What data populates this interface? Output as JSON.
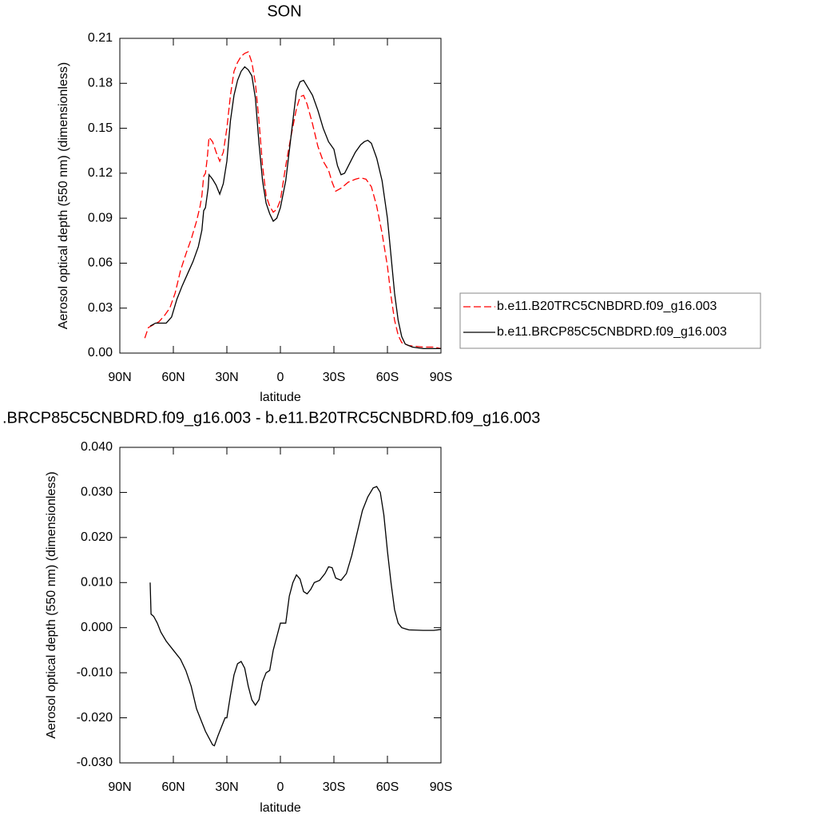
{
  "chart_data": [
    {
      "type": "line",
      "title": "SON",
      "xlabel": "latitude",
      "ylabel": "Aerosol optical depth (550 nm) (dimensionless)",
      "xlim": [
        90,
        -90
      ],
      "xticks": [
        {
          "value": 90,
          "label": "90N"
        },
        {
          "value": 60,
          "label": "60N"
        },
        {
          "value": 30,
          "label": "30N"
        },
        0,
        {
          "value": -30,
          "label": "30S"
        },
        {
          "value": -60,
          "label": "60S"
        },
        {
          "value": -90,
          "label": "90S"
        }
      ],
      "ylim": [
        0,
        0.21
      ],
      "yticks": [
        {
          "value": 0,
          "label": "0.00"
        },
        0.03,
        0.06,
        0.09,
        0.12,
        0.15,
        0.18,
        0.21
      ],
      "legend": "right",
      "series": [
        {
          "name": "b.e11.B20TRC5CNBDRD.f09_g16.003",
          "color": "#ff0000",
          "line_style": "dashed",
          "x": [
            76,
            74,
            71,
            68,
            65,
            62,
            59,
            56,
            53,
            50,
            47,
            45,
            44,
            43,
            42,
            41,
            40,
            38,
            36,
            34,
            32,
            30,
            28,
            26,
            24,
            22,
            20,
            18,
            16,
            14,
            12,
            10,
            8,
            6,
            4,
            2,
            0,
            -3,
            -6,
            -9,
            -11,
            -13,
            -15,
            -18,
            -21,
            -24,
            -27,
            -29,
            -31,
            -34,
            -38,
            -42,
            -45,
            -48,
            -51,
            -54,
            -57,
            -60,
            -62,
            -64,
            -66,
            -68,
            -72,
            -80,
            -86,
            -90
          ],
          "values": [
            0.01,
            0.017,
            0.019,
            0.021,
            0.025,
            0.03,
            0.04,
            0.055,
            0.066,
            0.076,
            0.088,
            0.098,
            0.105,
            0.118,
            0.12,
            0.13,
            0.144,
            0.141,
            0.134,
            0.128,
            0.134,
            0.15,
            0.172,
            0.188,
            0.194,
            0.198,
            0.2,
            0.201,
            0.194,
            0.18,
            0.155,
            0.125,
            0.105,
            0.098,
            0.094,
            0.096,
            0.102,
            0.125,
            0.145,
            0.163,
            0.171,
            0.172,
            0.166,
            0.153,
            0.138,
            0.128,
            0.122,
            0.114,
            0.108,
            0.11,
            0.114,
            0.116,
            0.117,
            0.116,
            0.111,
            0.098,
            0.08,
            0.058,
            0.038,
            0.022,
            0.012,
            0.007,
            0.005,
            0.004,
            0.004,
            0.003
          ]
        },
        {
          "name": "b.e11.BRCP85C5CNBDRD.f09_g16.003",
          "color": "#000000",
          "line_style": "solid",
          "x": [
            73,
            70,
            67,
            64,
            61,
            58,
            55,
            52,
            49,
            46,
            44,
            43,
            42,
            40.5,
            40,
            38,
            36,
            34,
            32,
            30,
            28,
            26,
            24,
            22,
            20,
            18,
            16,
            14,
            12,
            10,
            8,
            6,
            4,
            2,
            0,
            -3,
            -6,
            -9,
            -11,
            -13,
            -15,
            -18,
            -21,
            -24,
            -27,
            -30,
            -32,
            -34,
            -36,
            -39,
            -42,
            -45,
            -47,
            -49,
            -51,
            -54,
            -57,
            -60,
            -62,
            -64,
            -66,
            -68,
            -70,
            -74,
            -80,
            -86,
            -90
          ],
          "values": [
            0.018,
            0.02,
            0.02,
            0.02,
            0.024,
            0.036,
            0.045,
            0.053,
            0.061,
            0.071,
            0.082,
            0.095,
            0.097,
            0.11,
            0.119,
            0.116,
            0.112,
            0.106,
            0.113,
            0.128,
            0.155,
            0.172,
            0.182,
            0.188,
            0.191,
            0.189,
            0.185,
            0.17,
            0.14,
            0.115,
            0.1,
            0.093,
            0.088,
            0.09,
            0.097,
            0.115,
            0.145,
            0.175,
            0.181,
            0.182,
            0.178,
            0.172,
            0.162,
            0.15,
            0.141,
            0.136,
            0.125,
            0.119,
            0.12,
            0.127,
            0.134,
            0.139,
            0.141,
            0.142,
            0.14,
            0.13,
            0.115,
            0.09,
            0.065,
            0.04,
            0.022,
            0.011,
            0.006,
            0.004,
            0.003,
            0.003,
            0.003
          ]
        }
      ]
    },
    {
      "type": "line",
      "title": ".BRCP85C5CNBDRD.f09_g16.003 - b.e11.B20TRC5CNBDRD.f09_g16.003",
      "xlabel": "latitude",
      "ylabel": "Aerosol optical depth (550 nm) (dimensionless)",
      "xlim": [
        90,
        -90
      ],
      "xticks": [
        {
          "value": 90,
          "label": "90N"
        },
        {
          "value": 60,
          "label": "60N"
        },
        {
          "value": 30,
          "label": "30N"
        },
        0,
        {
          "value": -30,
          "label": "30S"
        },
        {
          "value": -60,
          "label": "60S"
        },
        {
          "value": -90,
          "label": "90S"
        }
      ],
      "ylim": [
        -0.03,
        0.04
      ],
      "yticks": [
        {
          "value": -0.03,
          "label": "-0.030"
        },
        {
          "value": -0.02,
          "label": "-0.020"
        },
        {
          "value": -0.01,
          "label": "-0.010"
        },
        {
          "value": 0,
          "label": "0.000"
        },
        {
          "value": 0.01,
          "label": "0.010"
        },
        {
          "value": 0.02,
          "label": "0.020"
        },
        {
          "value": 0.03,
          "label": "0.030"
        },
        {
          "value": 0.04,
          "label": "0.040"
        }
      ],
      "series": [
        {
          "color": "#000000",
          "line_style": "solid",
          "x": [
            73,
            72.5,
            71,
            69,
            67,
            64,
            60,
            56,
            53,
            50,
            47,
            44,
            42,
            40,
            38,
            37,
            35,
            32,
            31,
            30,
            28,
            26,
            24,
            22,
            20,
            18,
            16,
            14,
            12,
            10,
            8,
            6,
            4,
            2,
            0,
            -2,
            -3,
            -5,
            -7,
            -9,
            -11,
            -13,
            -15,
            -17,
            -19,
            -22,
            -25,
            -27,
            -29,
            -31,
            -34,
            -37,
            -40,
            -43,
            -46,
            -49,
            -52,
            -54,
            -56,
            -58,
            -60,
            -62,
            -64,
            -66,
            -68,
            -72,
            -80,
            -86,
            -90
          ],
          "values": [
            0.01,
            0.003,
            0.0025,
            0.001,
            -0.001,
            -0.003,
            -0.005,
            -0.007,
            -0.0095,
            -0.013,
            -0.018,
            -0.021,
            -0.023,
            -0.0245,
            -0.026,
            -0.0262,
            -0.024,
            -0.021,
            -0.02,
            -0.02,
            -0.015,
            -0.0105,
            -0.008,
            -0.0075,
            -0.009,
            -0.013,
            -0.016,
            -0.0172,
            -0.016,
            -0.012,
            -0.01,
            -0.0095,
            -0.005,
            -0.002,
            0.001,
            0.001,
            0.001,
            0.007,
            0.01,
            0.0117,
            0.0108,
            0.008,
            0.0075,
            0.0085,
            0.01,
            0.0105,
            0.012,
            0.0135,
            0.0133,
            0.011,
            0.0105,
            0.012,
            0.016,
            0.021,
            0.026,
            0.029,
            0.031,
            0.0313,
            0.03,
            0.025,
            0.017,
            0.01,
            0.004,
            0.001,
            0.0,
            -0.0005,
            -0.0006,
            -0.0006,
            -0.0004
          ]
        }
      ]
    }
  ]
}
